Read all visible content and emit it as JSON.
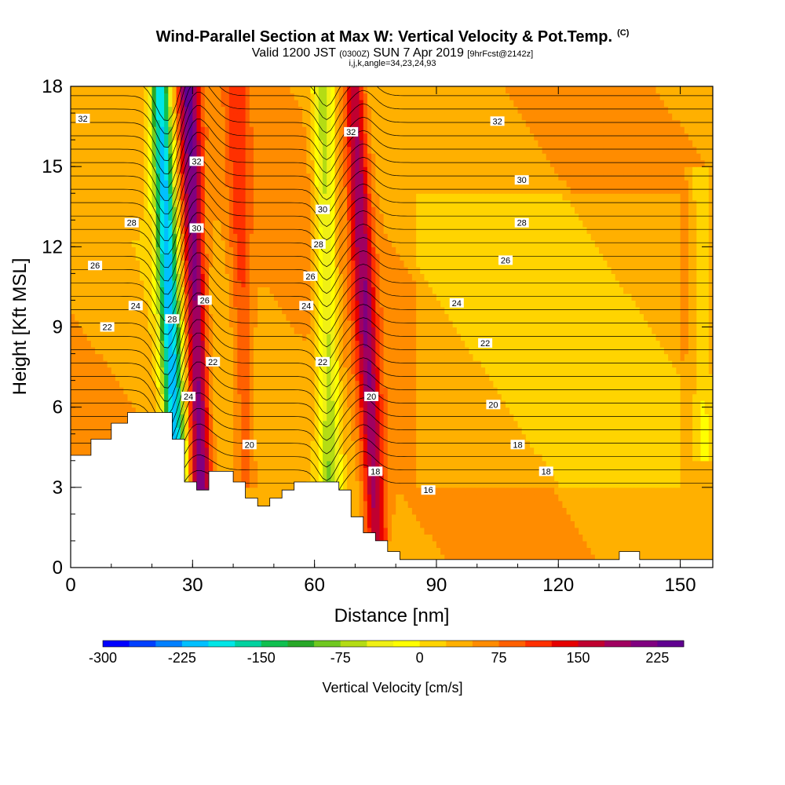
{
  "header": {
    "title": "Wind-Parallel Section at Max W: Vertical Velocity & Pot.Temp.",
    "copyright": "(C)",
    "valid_main": "Valid 1200 JST",
    "valid_utc": "(0300Z)",
    "valid_date": "SUN 7 Apr 2019",
    "forecast": "[9hrFcst@2142z]",
    "indices": "i,j,k,angle=34,23,24,93"
  },
  "chart_data": {
    "type": "heatmap",
    "xlabel": "Distance [nm]",
    "ylabel": "Height [Kft MSL]",
    "xlim": [
      0,
      158
    ],
    "ylim": [
      0,
      18
    ],
    "x_ticks": [
      0,
      30,
      60,
      90,
      120,
      150
    ],
    "y_ticks": [
      0,
      3,
      6,
      9,
      12,
      15,
      18
    ],
    "colorbar": {
      "label": "Vertical Velocity [cm/s]",
      "range": [
        -300,
        250
      ],
      "tick_values": [
        -300,
        -225,
        -150,
        -75,
        0,
        75,
        150,
        225
      ],
      "tick_labels": [
        "-300",
        "-225",
        "-150",
        "-75",
        "0",
        "75",
        "150",
        "225"
      ],
      "colors": [
        "#0000ff",
        "#0040ff",
        "#0080ff",
        "#00c0ff",
        "#00e6e6",
        "#00d2a0",
        "#10c050",
        "#28a828",
        "#70c820",
        "#b4dc14",
        "#f0f014",
        "#ffff00",
        "#ffd400",
        "#ffb000",
        "#ff8c00",
        "#ff6000",
        "#ff3000",
        "#e60000",
        "#c00030",
        "#a00060",
        "#800080",
        "#600090"
      ]
    },
    "velocity_features": [
      {
        "type": "downdraft",
        "x_bottom": 26,
        "x_top": 22,
        "y_bottom": 3.5,
        "y_top": 18,
        "min": -250
      },
      {
        "type": "updraft",
        "x_bottom": 32,
        "x_top": 29,
        "y_bottom": 3.5,
        "y_top": 18,
        "max": 175
      },
      {
        "type": "updraft",
        "x_bottom": 43,
        "x_top": 41,
        "y_bottom": 4,
        "y_top": 17,
        "max": 60
      },
      {
        "type": "downdraft",
        "x_bottom": 64,
        "x_top": 62,
        "y_bottom": 3,
        "y_top": 18,
        "min": -110
      },
      {
        "type": "updraft",
        "x_bottom": 75,
        "x_top": 70,
        "y_bottom": 2,
        "y_top": 17,
        "max": 140
      },
      {
        "type": "downdraft",
        "x_bottom": 156,
        "x_top": 155,
        "y_bottom": 5,
        "y_top": 14,
        "min": -50
      }
    ],
    "potential_temperature_contour_labels": [
      {
        "text": "32",
        "x": 3,
        "y": 16.8
      },
      {
        "text": "32",
        "x": 31,
        "y": 15.2
      },
      {
        "text": "32",
        "x": 69,
        "y": 16.3
      },
      {
        "text": "32",
        "x": 105,
        "y": 16.7
      },
      {
        "text": "30",
        "x": 31,
        "y": 12.7
      },
      {
        "text": "30",
        "x": 62,
        "y": 13.4
      },
      {
        "text": "30",
        "x": 111,
        "y": 14.5
      },
      {
        "text": "28",
        "x": 15,
        "y": 12.9
      },
      {
        "text": "28",
        "x": 25,
        "y": 9.3
      },
      {
        "text": "28",
        "x": 61,
        "y": 12.1
      },
      {
        "text": "28",
        "x": 111,
        "y": 12.9
      },
      {
        "text": "26",
        "x": 6,
        "y": 11.3
      },
      {
        "text": "26",
        "x": 33,
        "y": 10.0
      },
      {
        "text": "26",
        "x": 59,
        "y": 10.9
      },
      {
        "text": "26",
        "x": 107,
        "y": 11.5
      },
      {
        "text": "24",
        "x": 16,
        "y": 9.8
      },
      {
        "text": "24",
        "x": 29,
        "y": 6.4
      },
      {
        "text": "24",
        "x": 58,
        "y": 9.8
      },
      {
        "text": "24",
        "x": 95,
        "y": 9.9
      },
      {
        "text": "22",
        "x": 9,
        "y": 9.0
      },
      {
        "text": "22",
        "x": 35,
        "y": 7.7
      },
      {
        "text": "22",
        "x": 62,
        "y": 7.7
      },
      {
        "text": "22",
        "x": 102,
        "y": 8.4
      },
      {
        "text": "20",
        "x": 44,
        "y": 4.6
      },
      {
        "text": "20",
        "x": 74,
        "y": 6.4
      },
      {
        "text": "20",
        "x": 104,
        "y": 6.1
      },
      {
        "text": "18",
        "x": 75,
        "y": 3.6
      },
      {
        "text": "18",
        "x": 110,
        "y": 4.6
      },
      {
        "text": "18",
        "x": 117,
        "y": 3.6
      },
      {
        "text": "16",
        "x": 88,
        "y": 2.9
      }
    ]
  }
}
